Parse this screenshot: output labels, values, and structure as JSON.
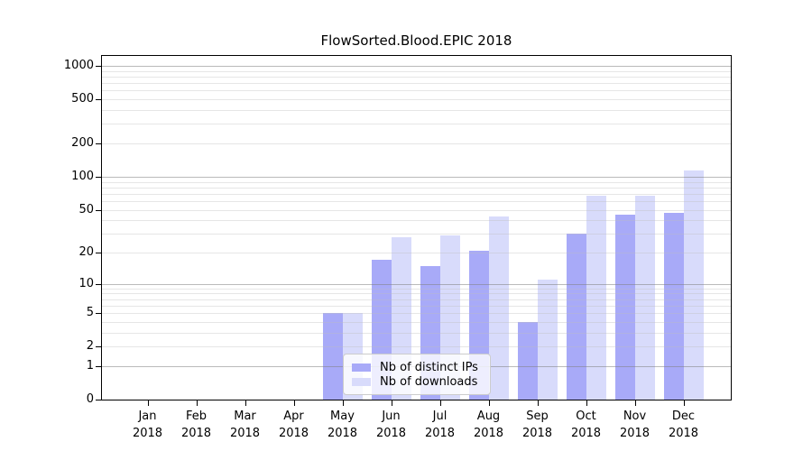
{
  "title": "FlowSorted.Blood.EPIC 2018",
  "chart_data": {
    "type": "bar",
    "title": "FlowSorted.Blood.EPIC 2018",
    "categories": [
      "Jan 2018",
      "Feb 2018",
      "Mar 2018",
      "Apr 2018",
      "May 2018",
      "Jun 2018",
      "Jul 2018",
      "Aug 2018",
      "Sep 2018",
      "Oct 2018",
      "Nov 2018",
      "Dec 2018"
    ],
    "series": [
      {
        "name": "Nb of distinct IPs",
        "color": "#a8aaf8",
        "values": [
          0,
          0,
          0,
          0,
          5,
          17,
          15,
          21,
          4,
          30,
          45,
          47
        ]
      },
      {
        "name": "Nb of downloads",
        "color": "#d8dbfb",
        "values": [
          0,
          0,
          0,
          0,
          5,
          28,
          29,
          43,
          11,
          67,
          67,
          113
        ]
      }
    ],
    "xlabel": "",
    "ylabel": "",
    "yscale": "log1p",
    "ylim": [
      0,
      1250
    ],
    "yticks": [
      1000,
      500,
      200,
      100,
      50,
      20,
      10,
      5,
      2,
      1,
      0
    ],
    "major_gridlines": [
      1,
      10,
      100,
      1000
    ],
    "minor_gridlines": [
      2,
      3,
      4,
      5,
      6,
      7,
      8,
      9,
      20,
      30,
      40,
      50,
      60,
      70,
      80,
      90,
      200,
      300,
      400,
      500,
      600,
      700,
      800,
      900
    ],
    "grid": true,
    "legend_position": "lower center inside",
    "colors": {
      "axis": "#000000",
      "major_grid": "#b5b5b5",
      "minor_grid": "#eaeaea",
      "background": "#ffffff"
    }
  },
  "legend": {
    "items": [
      {
        "label": "Nb of distinct IPs",
        "color": "#a8aaf8"
      },
      {
        "label": "Nb of downloads",
        "color": "#d8dbfb"
      }
    ]
  }
}
